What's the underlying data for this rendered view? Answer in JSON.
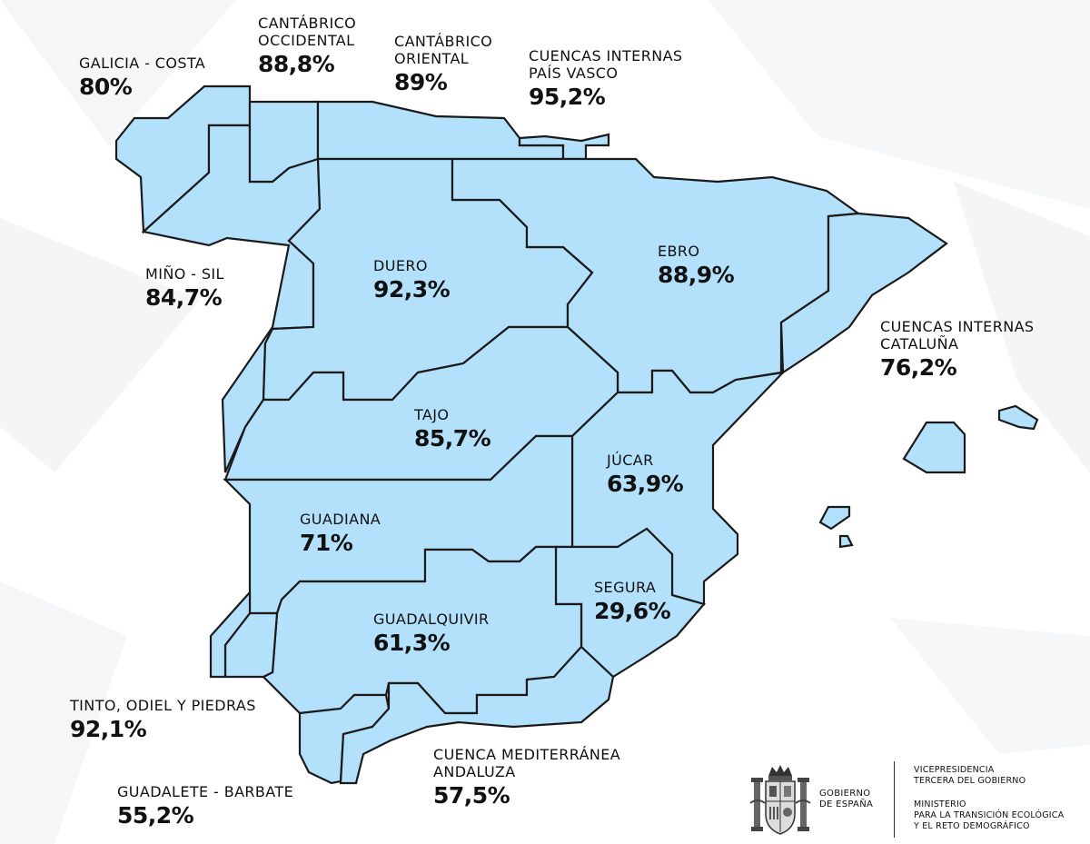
{
  "basins": [
    {
      "id": "galicia-costa",
      "name": "GALICIA - COSTA",
      "value": "80%"
    },
    {
      "id": "cantabrico-occidental",
      "name": "CANTÁBRICO\nOCCIDENTAL",
      "value": "88,8%"
    },
    {
      "id": "cantabrico-oriental",
      "name": "CANTÁBRICO\nORIENTAL",
      "value": "89%"
    },
    {
      "id": "pais-vasco",
      "name": "CUENCAS INTERNAS\nPAÍS VASCO",
      "value": "95,2%"
    },
    {
      "id": "mino-sil",
      "name": "MIÑO - SIL",
      "value": "84,7%"
    },
    {
      "id": "duero",
      "name": "DUERO",
      "value": "92,3%"
    },
    {
      "id": "ebro",
      "name": "EBRO",
      "value": "88,9%"
    },
    {
      "id": "cataluna",
      "name": "CUENCAS INTERNAS\nCATALUÑA",
      "value": "76,2%"
    },
    {
      "id": "tajo",
      "name": "TAJO",
      "value": "85,7%"
    },
    {
      "id": "jucar",
      "name": "JÚCAR",
      "value": "63,9%"
    },
    {
      "id": "guadiana",
      "name": "GUADIANA",
      "value": "71%"
    },
    {
      "id": "segura",
      "name": "SEGURA",
      "value": "29,6%"
    },
    {
      "id": "guadalquivir",
      "name": "GUADALQUIVIR",
      "value": "61,3%"
    },
    {
      "id": "tinto-odiel",
      "name": "TINTO, ODIEL Y PIEDRAS",
      "value": "92,1%"
    },
    {
      "id": "mediterranea-andaluza",
      "name": "CUENCA MEDITERRÁNEA\nANDALUZA",
      "value": "57,5%"
    },
    {
      "id": "guadalete-barbate",
      "name": "GUADALETE - BARBATE",
      "value": "55,2%"
    }
  ],
  "colors": {
    "basin_fill": "#b3e0fb",
    "border": "#1a1a1a",
    "text": "#111111"
  },
  "footer": {
    "government": "GOBIERNO\nDE ESPAÑA",
    "vicepresidency": "VICEPRESIDENCIA\nTERCERA DEL GOBIERNO",
    "ministry": "MINISTERIO\nPARA LA TRANSICIÓN ECOLÓGICA\nY EL RETO DEMOGRÁFICO",
    "icon": "coat-of-arms-icon"
  }
}
